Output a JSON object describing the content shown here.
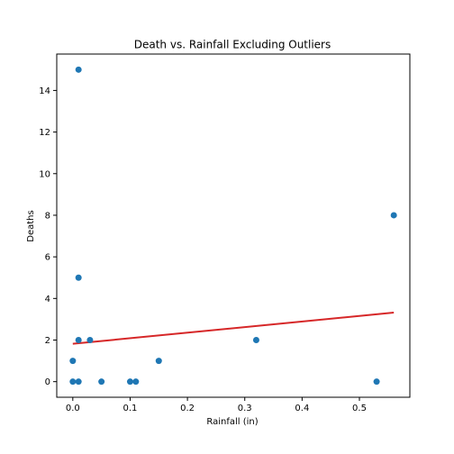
{
  "chart_data": {
    "type": "scatter",
    "title": "Death vs. Rainfall Excluding Outliers",
    "xlabel": "Rainfall (in)",
    "ylabel": "Deaths",
    "xlim": [
      -0.028,
      0.588
    ],
    "ylim": [
      -0.75,
      15.75
    ],
    "xticks": [
      0.0,
      0.1,
      0.2,
      0.3,
      0.4,
      0.5
    ],
    "xtick_labels": [
      "0.0",
      "0.1",
      "0.2",
      "0.3",
      "0.4",
      "0.5"
    ],
    "yticks": [
      0,
      2,
      4,
      6,
      8,
      10,
      12,
      14
    ],
    "ytick_labels": [
      "0",
      "2",
      "4",
      "6",
      "8",
      "10",
      "12",
      "14"
    ],
    "grid": false,
    "legend": "none",
    "points": [
      {
        "x": 0.0,
        "y": 0
      },
      {
        "x": 0.0,
        "y": 1
      },
      {
        "x": 0.01,
        "y": 15
      },
      {
        "x": 0.01,
        "y": 5
      },
      {
        "x": 0.01,
        "y": 2
      },
      {
        "x": 0.01,
        "y": 0
      },
      {
        "x": 0.03,
        "y": 2
      },
      {
        "x": 0.05,
        "y": 0
      },
      {
        "x": 0.1,
        "y": 0
      },
      {
        "x": 0.11,
        "y": 0
      },
      {
        "x": 0.15,
        "y": 1
      },
      {
        "x": 0.32,
        "y": 2
      },
      {
        "x": 0.53,
        "y": 0
      },
      {
        "x": 0.56,
        "y": 8
      }
    ],
    "trendline": {
      "x": [
        0.0,
        0.56
      ],
      "y": [
        1.82,
        3.32
      ]
    },
    "colors": {
      "points": "#1f77b4",
      "trendline": "#d62728",
      "frame": "#000000"
    }
  }
}
